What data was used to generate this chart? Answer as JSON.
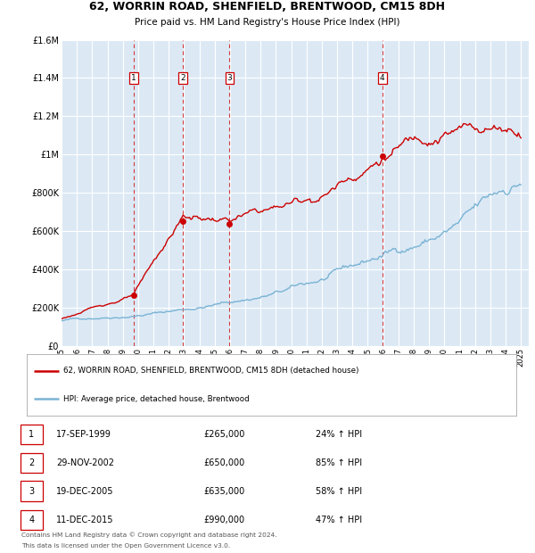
{
  "title": "62, WORRIN ROAD, SHENFIELD, BRENTWOOD, CM15 8DH",
  "subtitle": "Price paid vs. HM Land Registry's House Price Index (HPI)",
  "ylim": [
    0,
    1600000
  ],
  "yticks": [
    0,
    200000,
    400000,
    600000,
    800000,
    1000000,
    1200000,
    1400000,
    1600000
  ],
  "ytick_labels": [
    "£0",
    "£200K",
    "£400K",
    "£600K",
    "£800K",
    "£1M",
    "£1.2M",
    "£1.4M",
    "£1.6M"
  ],
  "xlim_start": 1995.0,
  "xlim_end": 2025.5,
  "background_color": "#dce9f5",
  "grid_color": "#ffffff",
  "hpi_color": "#7ab3d4",
  "price_color": "#cc0000",
  "sale_vline_color": "#cc0000",
  "sales": [
    {
      "num": 1,
      "date_year": 1999.72,
      "price": 265000,
      "label": "1"
    },
    {
      "num": 2,
      "date_year": 2002.92,
      "price": 650000,
      "label": "2"
    },
    {
      "num": 3,
      "date_year": 2005.97,
      "price": 635000,
      "label": "3"
    },
    {
      "num": 4,
      "date_year": 2015.95,
      "price": 990000,
      "label": "4"
    }
  ],
  "legend_line1": "62, WORRIN ROAD, SHENFIELD, BRENTWOOD, CM15 8DH (detached house)",
  "legend_line2": "HPI: Average price, detached house, Brentwood",
  "table": [
    {
      "num": "1",
      "date": "17-SEP-1999",
      "price": "£265,000",
      "pct": "24% ↑ HPI"
    },
    {
      "num": "2",
      "date": "29-NOV-2002",
      "price": "£650,000",
      "pct": "85% ↑ HPI"
    },
    {
      "num": "3",
      "date": "19-DEC-2005",
      "price": "£635,000",
      "pct": "58% ↑ HPI"
    },
    {
      "num": "4",
      "date": "11-DEC-2015",
      "price": "£990,000",
      "pct": "47% ↑ HPI"
    }
  ],
  "footnote1": "Contains HM Land Registry data © Crown copyright and database right 2024.",
  "footnote2": "This data is licensed under the Open Government Licence v3.0.",
  "xticks": [
    1995,
    1996,
    1997,
    1998,
    1999,
    2000,
    2001,
    2002,
    2003,
    2004,
    2005,
    2006,
    2007,
    2008,
    2009,
    2010,
    2011,
    2012,
    2013,
    2014,
    2015,
    2016,
    2017,
    2018,
    2019,
    2020,
    2021,
    2022,
    2023,
    2024,
    2025
  ]
}
